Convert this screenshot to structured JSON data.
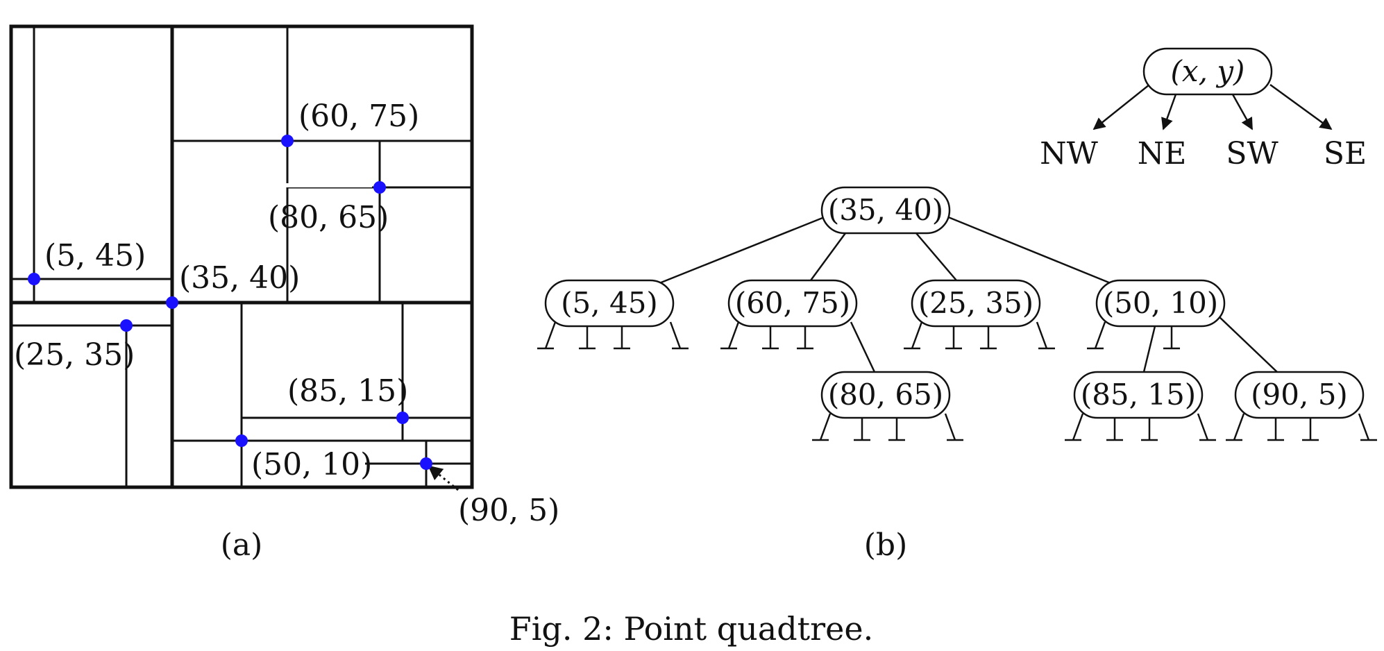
{
  "figure": {
    "caption": "Fig. 2: Point quadtree.",
    "panel_a_label": "(a)",
    "panel_b_label": "(b)"
  },
  "panel_a": {
    "points": {
      "p35_40": "(35, 40)",
      "p5_45": "(5, 45)",
      "p25_35": "(25, 35)",
      "p60_75": "(60, 75)",
      "p80_65": "(80, 65)",
      "p50_10": "(50, 10)",
      "p85_15": "(85, 15)",
      "p90_5": "(90, 5)"
    },
    "point_color": "#1a12ff"
  },
  "panel_b": {
    "legend": {
      "node": "(x, y)",
      "children": [
        "NW",
        "NE",
        "SW",
        "SE"
      ]
    },
    "tree": {
      "root": "(35, 40)",
      "level1": [
        "(5, 45)",
        "(60, 75)",
        "(25, 35)",
        "(50, 10)"
      ],
      "level2": [
        "(80, 65)",
        "(85, 15)",
        "(90, 5)"
      ]
    }
  }
}
